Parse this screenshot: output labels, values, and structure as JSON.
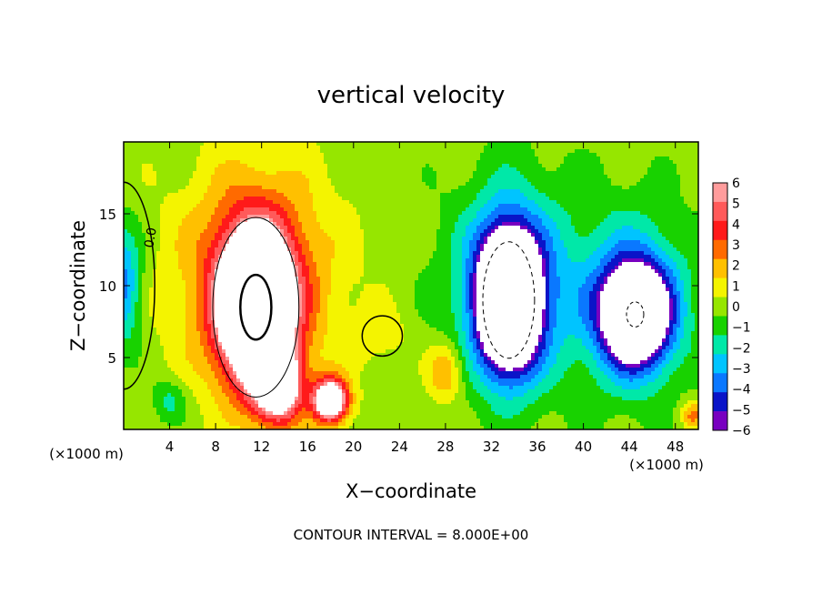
{
  "chart_data": {
    "type": "heatmap",
    "title": "vertical velocity",
    "xlabel": "X−coordinate",
    "ylabel": "Z−coordinate",
    "x_unit": "(×1000 m)",
    "z_unit": "(×1000 m)",
    "xlim": [
      0,
      50
    ],
    "ylim": [
      0,
      20
    ],
    "x_ticks": [
      4,
      8,
      12,
      16,
      20,
      24,
      28,
      32,
      36,
      40,
      44,
      48
    ],
    "y_ticks": [
      5,
      10,
      15
    ],
    "colorbar": {
      "labels": [
        "6",
        "5",
        "4",
        "3",
        "2",
        "1",
        "0",
        "−1",
        "−2",
        "−3",
        "−4",
        "−5",
        "−6"
      ],
      "colors": [
        "#ff9c9c",
        "#ff5a5a",
        "#ff1a1a",
        "#ff6a00",
        "#ffc000",
        "#f4f400",
        "#96e600",
        "#18d200",
        "#00e8a8",
        "#00c4ff",
        "#0a78ff",
        "#0a14c8",
        "#7800c0"
      ]
    },
    "contour_interval_text": "CONTOUR INTERVAL = 8.000E+00",
    "contour_label": "0.0",
    "features": [
      {
        "cx": 11.5,
        "cz": 8.5,
        "rx": 3.0,
        "rz": 5.0,
        "w": 14
      },
      {
        "cx": 11.5,
        "cz": 10.5,
        "rx": 6.5,
        "rz": 7.5,
        "w": 4
      },
      {
        "cx": 13.5,
        "cz": 3.0,
        "rx": 2.0,
        "rz": 2.5,
        "w": 8
      },
      {
        "cx": 18.0,
        "cz": 2.0,
        "rx": 1.5,
        "rz": 1.5,
        "w": 10
      },
      {
        "cx": 22.5,
        "cz": 6.5,
        "rx": 2.5,
        "rz": 2.0,
        "w": 1
      },
      {
        "cx": 28.0,
        "cz": 4.0,
        "rx": 1.5,
        "rz": 2.0,
        "w": 3
      },
      {
        "cx": 33.5,
        "cz": 9.0,
        "rx": 2.5,
        "rz": 4.5,
        "w": -14
      },
      {
        "cx": 34.0,
        "cz": 10.0,
        "rx": 5.5,
        "rz": 7.0,
        "w": -4
      },
      {
        "cx": 44.5,
        "cz": 8.0,
        "rx": 3.0,
        "rz": 3.5,
        "w": -10
      },
      {
        "cx": 44.5,
        "cz": 9.0,
        "rx": 5.0,
        "rz": 6.5,
        "w": -3
      },
      {
        "cx": 0.0,
        "cz": 10.0,
        "rx": 1.5,
        "rz": 4.0,
        "w": -4
      },
      {
        "cx": 49.5,
        "cz": 1.0,
        "rx": 1.0,
        "rz": 1.0,
        "w": 3
      },
      {
        "cx": 4.0,
        "cz": 2.0,
        "rx": 1.5,
        "rz": 1.5,
        "w": -2
      }
    ]
  }
}
